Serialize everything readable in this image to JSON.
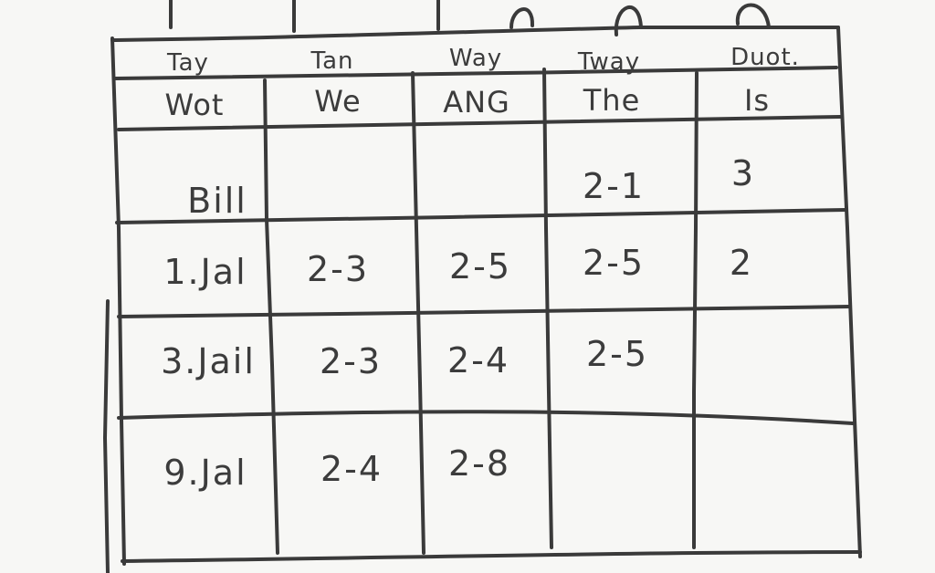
{
  "table": {
    "subheaders": [
      "Tay",
      "Tan",
      "Way",
      "Tway",
      "Duot."
    ],
    "headers": [
      "Wot",
      "We",
      "ANG",
      "The",
      "Is"
    ],
    "rows": [
      [
        "Bill",
        "",
        "",
        "2-1",
        "3"
      ],
      [
        "1.Jal",
        "2-3",
        "2-5",
        "2-5",
        "2"
      ],
      [
        "3.Jail",
        "2-3",
        "2-4",
        "2-5",
        ""
      ],
      [
        "9.Jal",
        "2-4",
        "2-8",
        "",
        ""
      ]
    ]
  },
  "style": {
    "ink": "#3a3a3a",
    "paper": "#f7f7f5"
  }
}
